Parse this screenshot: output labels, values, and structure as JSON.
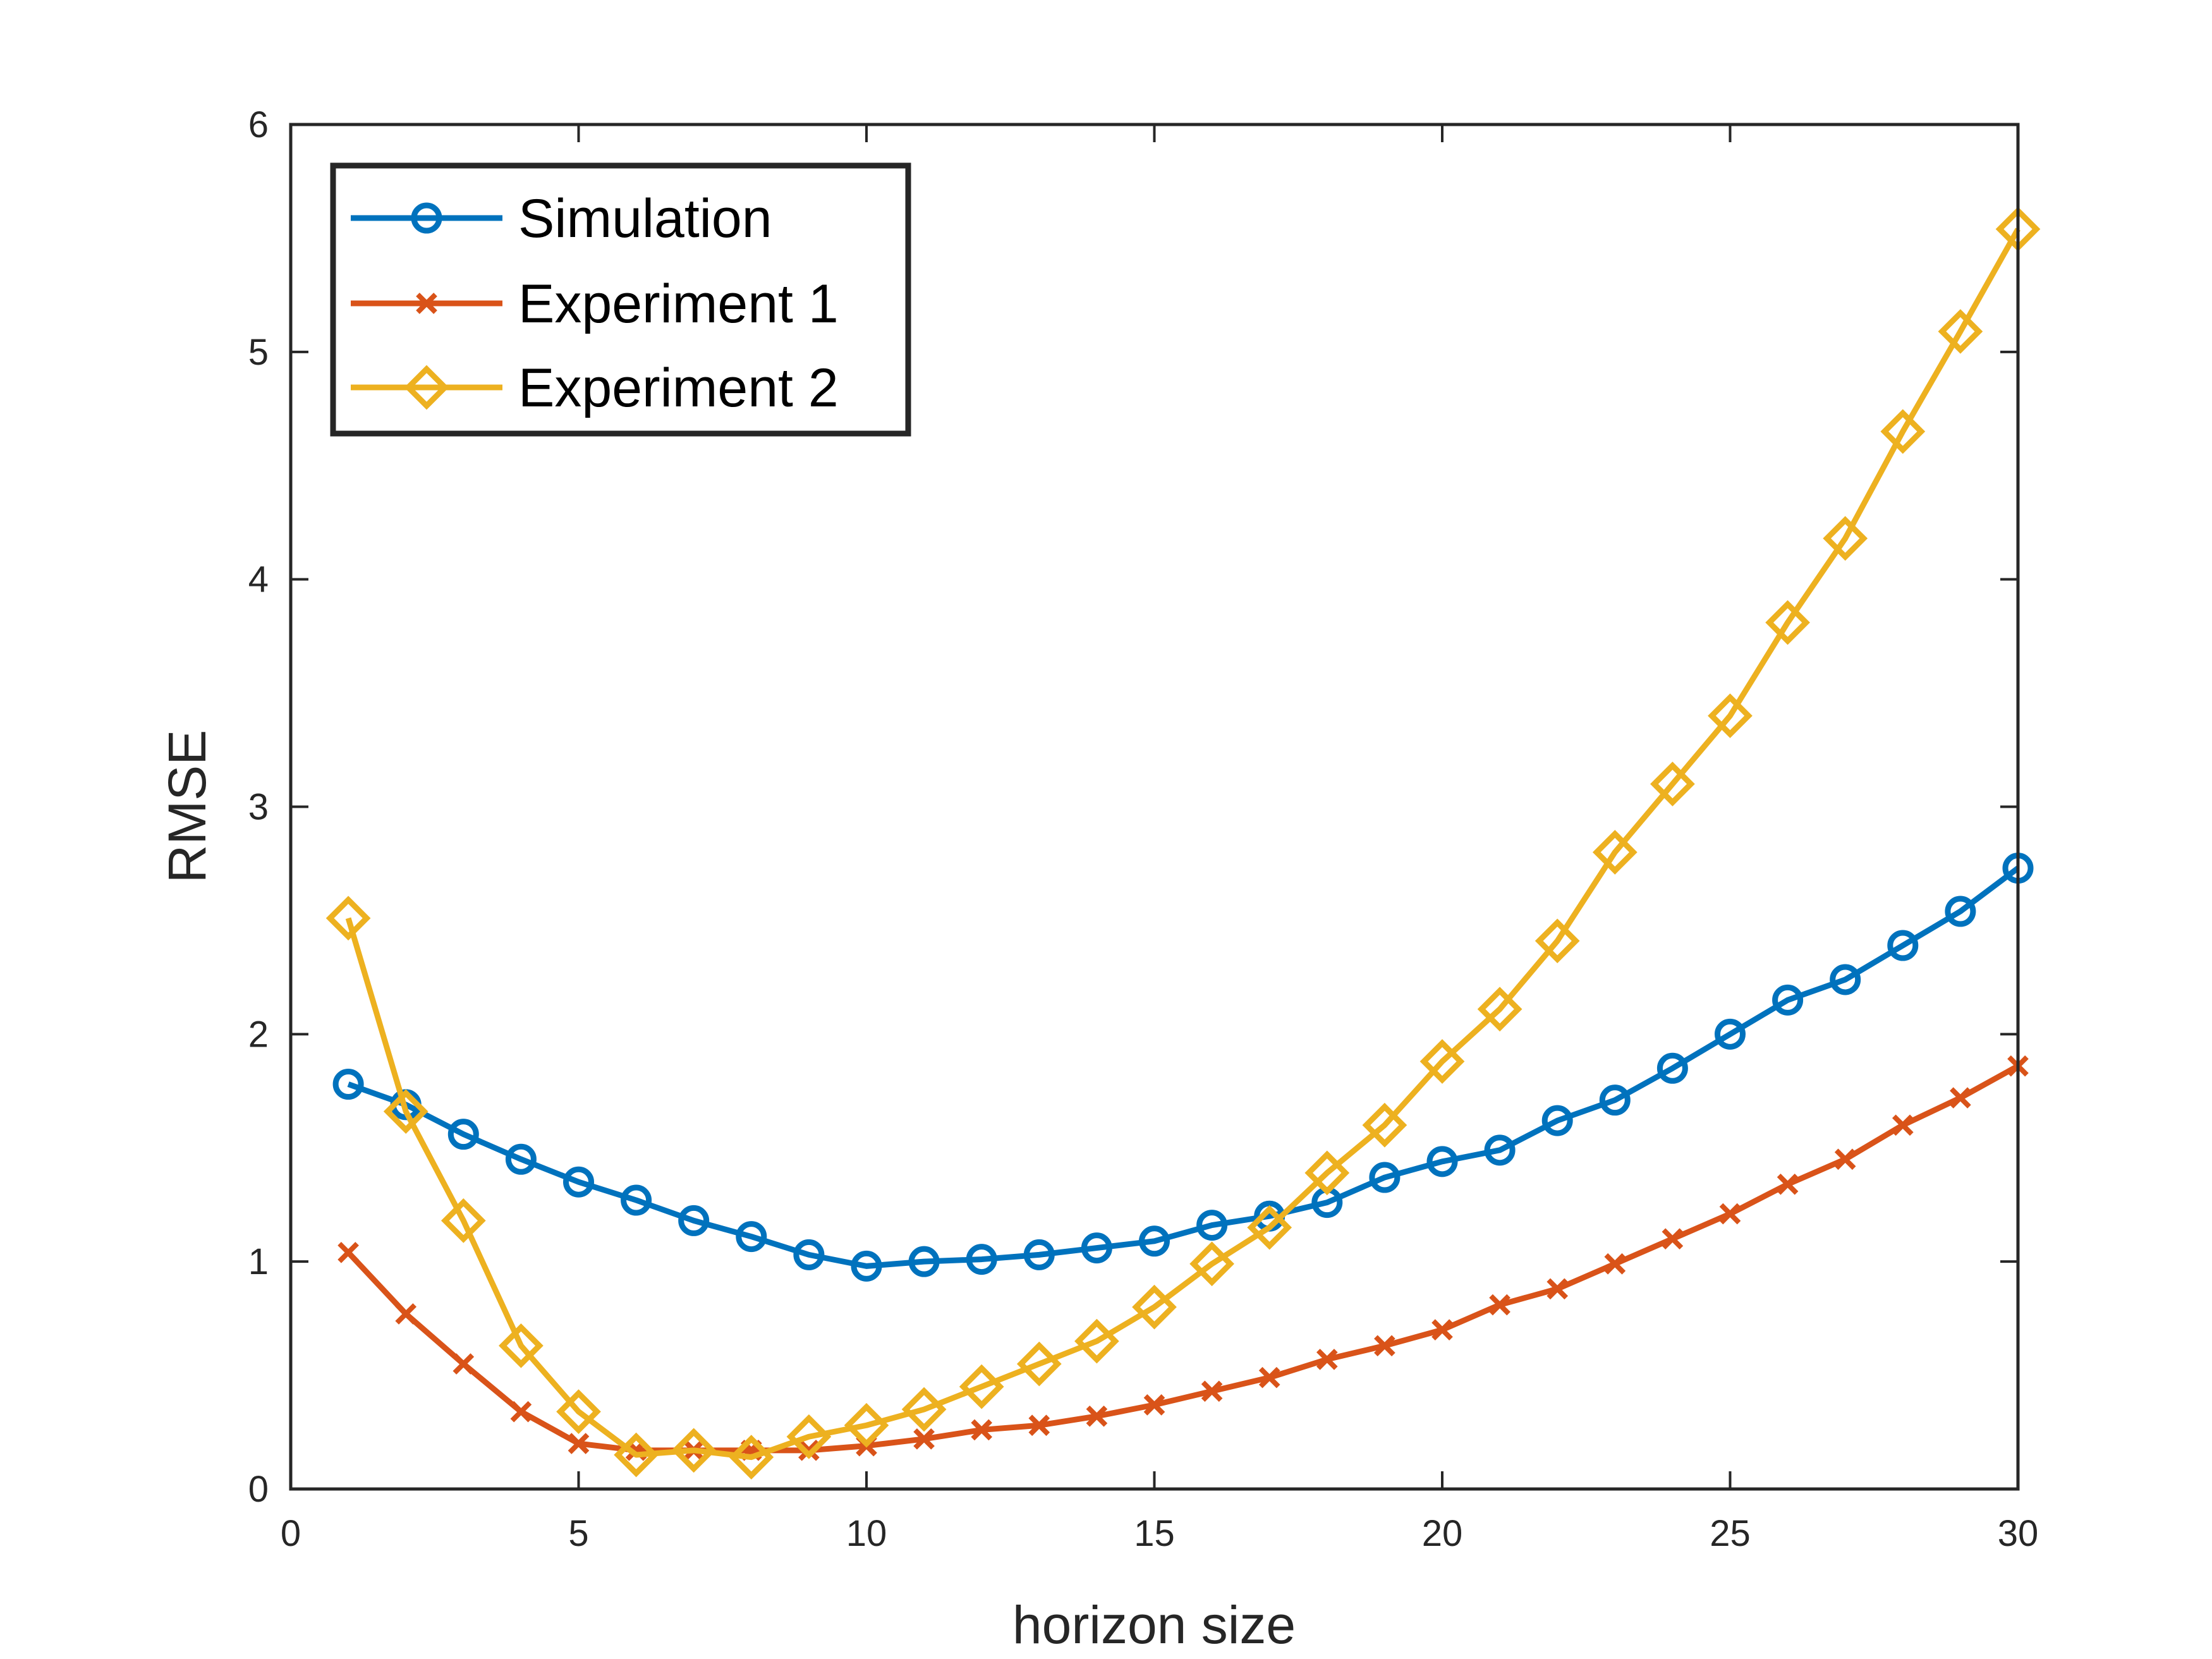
{
  "chart_data": {
    "type": "line",
    "xlabel": "horizon size",
    "ylabel": "RMSE",
    "xlim": [
      0,
      30
    ],
    "ylim": [
      0,
      6
    ],
    "xticks": [
      0,
      5,
      10,
      15,
      20,
      25,
      30
    ],
    "yticks": [
      0,
      1,
      2,
      3,
      4,
      5,
      6
    ],
    "grid": false,
    "legend_position": "top-left",
    "x": [
      1,
      2,
      3,
      4,
      5,
      6,
      7,
      8,
      9,
      10,
      11,
      12,
      13,
      14,
      15,
      16,
      17,
      18,
      19,
      20,
      21,
      22,
      23,
      24,
      25,
      26,
      27,
      28,
      29,
      30
    ],
    "series": [
      {
        "name": "Simulation",
        "color": "#0072BD",
        "marker": "circle",
        "values": [
          1.78,
          1.69,
          1.56,
          1.45,
          1.35,
          1.27,
          1.18,
          1.11,
          1.03,
          0.98,
          1.0,
          1.01,
          1.03,
          1.06,
          1.09,
          1.16,
          1.2,
          1.26,
          1.37,
          1.44,
          1.49,
          1.62,
          1.71,
          1.85,
          2.0,
          2.15,
          2.24,
          2.39,
          2.54,
          2.73
        ]
      },
      {
        "name": "Experiment 1",
        "color": "#D95319",
        "marker": "x",
        "values": [
          1.04,
          0.77,
          0.55,
          0.34,
          0.2,
          0.17,
          0.17,
          0.17,
          0.17,
          0.19,
          0.22,
          0.26,
          0.28,
          0.32,
          0.37,
          0.43,
          0.49,
          0.57,
          0.63,
          0.7,
          0.81,
          0.88,
          0.99,
          1.1,
          1.21,
          1.34,
          1.45,
          1.6,
          1.72,
          1.86
        ]
      },
      {
        "name": "Experiment 2",
        "color": "#EDB120",
        "marker": "diamond",
        "values": [
          2.51,
          1.66,
          1.18,
          0.63,
          0.34,
          0.15,
          0.17,
          0.14,
          0.23,
          0.28,
          0.35,
          0.45,
          0.55,
          0.65,
          0.8,
          0.99,
          1.15,
          1.39,
          1.6,
          1.88,
          2.11,
          2.41,
          2.8,
          3.1,
          3.4,
          3.81,
          4.18,
          4.65,
          5.09,
          5.54
        ]
      }
    ]
  }
}
